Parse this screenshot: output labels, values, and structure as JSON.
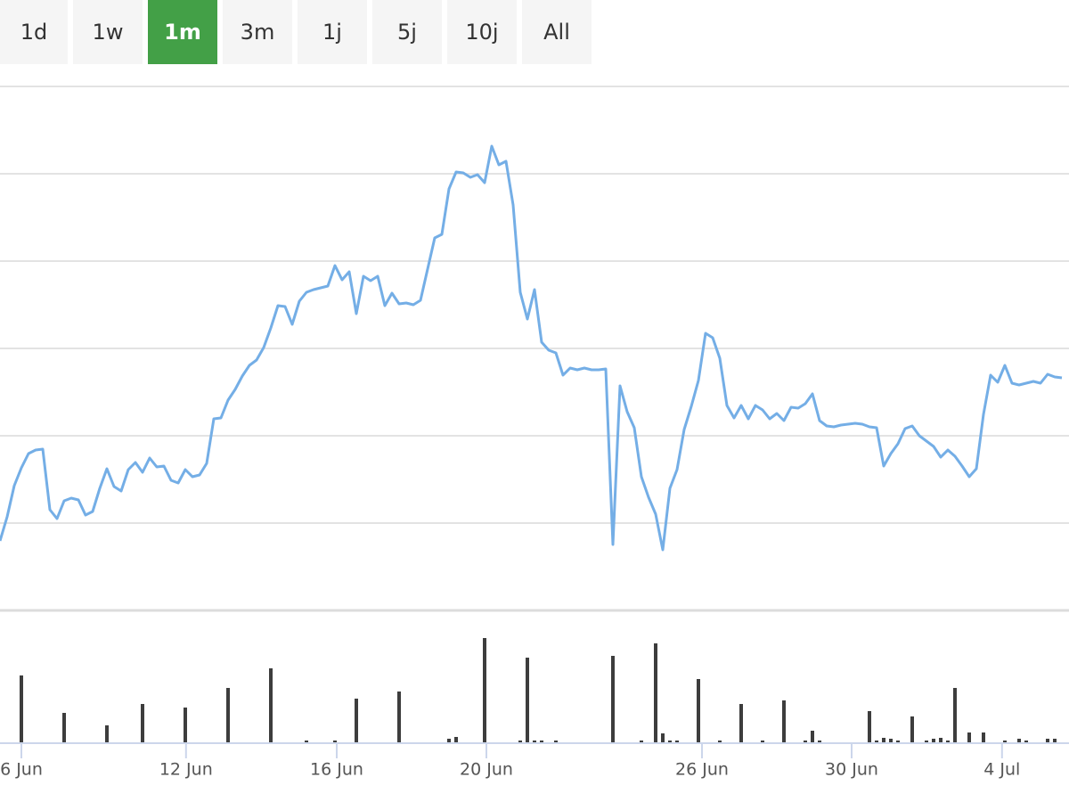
{
  "range_buttons": {
    "labels": [
      "1d",
      "1w",
      "1m",
      "3m",
      "1j",
      "5j",
      "10j",
      "All"
    ],
    "selected": "1m"
  },
  "chart_data": [
    {
      "type": "line",
      "color": "#74aee6",
      "grid": true,
      "xlim": [
        0,
        150
      ],
      "ylim": [
        0,
        588
      ],
      "yticks": [
        98,
        196,
        294,
        392,
        490,
        588
      ],
      "values": [
        78,
        105,
        140,
        160,
        176,
        180,
        181,
        113,
        103,
        123,
        126,
        124,
        107,
        111,
        137,
        159,
        139,
        134,
        158,
        166,
        155,
        171,
        161,
        162,
        146,
        143,
        158,
        150,
        152,
        165,
        215,
        216,
        236,
        248,
        263,
        275,
        281,
        295,
        317,
        342,
        341,
        321,
        347,
        357,
        360,
        362,
        364,
        387,
        371,
        380,
        333,
        375,
        370,
        375,
        342,
        356,
        344,
        345,
        343,
        348,
        383,
        418,
        422,
        473,
        492,
        491,
        486,
        489,
        480,
        521,
        500,
        504,
        455,
        357,
        327,
        360,
        301,
        292,
        289,
        264,
        272,
        270,
        272,
        270,
        270,
        271,
        74,
        252,
        223,
        205,
        150,
        127,
        108,
        68,
        137,
        158,
        203,
        229,
        258,
        311,
        306,
        283,
        230,
        216,
        230,
        215,
        230,
        225,
        215,
        221,
        213,
        228,
        227,
        232,
        243,
        213,
        207,
        206,
        208,
        209,
        210,
        209,
        206,
        205,
        162,
        176,
        187,
        204,
        207,
        196,
        190,
        184,
        172,
        180,
        173,
        162,
        150,
        159,
        220,
        264,
        256,
        275,
        255,
        253,
        255,
        257,
        255,
        265,
        262,
        261
      ]
    },
    {
      "type": "bar",
      "color": "#3d3d3d",
      "xlim": [
        0,
        150
      ],
      "ylim": [
        0,
        140
      ],
      "xticks": [
        {
          "value": 3,
          "label": "6 Jun"
        },
        {
          "value": 26.1,
          "label": "12 Jun"
        },
        {
          "value": 47.25,
          "label": "16 Jun"
        },
        {
          "value": 68.25,
          "label": "20 Jun"
        },
        {
          "value": 98.5,
          "label": "26 Jun"
        },
        {
          "value": 119.5,
          "label": "30 Jun"
        },
        {
          "value": 140.6,
          "label": "4 Jul"
        }
      ],
      "values": [
        null,
        null,
        null,
        75,
        null,
        null,
        null,
        null,
        null,
        33,
        null,
        null,
        null,
        null,
        null,
        19,
        null,
        null,
        null,
        null,
        43,
        null,
        null,
        null,
        null,
        null,
        39,
        null,
        null,
        null,
        null,
        null,
        61,
        null,
        null,
        null,
        null,
        null,
        83,
        null,
        null,
        null,
        null,
        2,
        null,
        null,
        null,
        2,
        null,
        null,
        49,
        null,
        null,
        null,
        null,
        null,
        57,
        null,
        null,
        null,
        null,
        null,
        null,
        4,
        6,
        null,
        null,
        null,
        117,
        null,
        null,
        null,
        null,
        2,
        95,
        2,
        2,
        null,
        2,
        null,
        null,
        null,
        null,
        null,
        null,
        null,
        97,
        null,
        null,
        null,
        2,
        null,
        111,
        10,
        2,
        2,
        null,
        null,
        71,
        null,
        null,
        2,
        null,
        null,
        43,
        null,
        null,
        2,
        null,
        null,
        47,
        null,
        null,
        2,
        13,
        2,
        null,
        null,
        null,
        null,
        null,
        null,
        35,
        2,
        5,
        4,
        2,
        null,
        29,
        null,
        2,
        4,
        5,
        2,
        61,
        null,
        11,
        null,
        11,
        null,
        null,
        2,
        null,
        4,
        2,
        null,
        null,
        4,
        4,
        null
      ]
    }
  ]
}
